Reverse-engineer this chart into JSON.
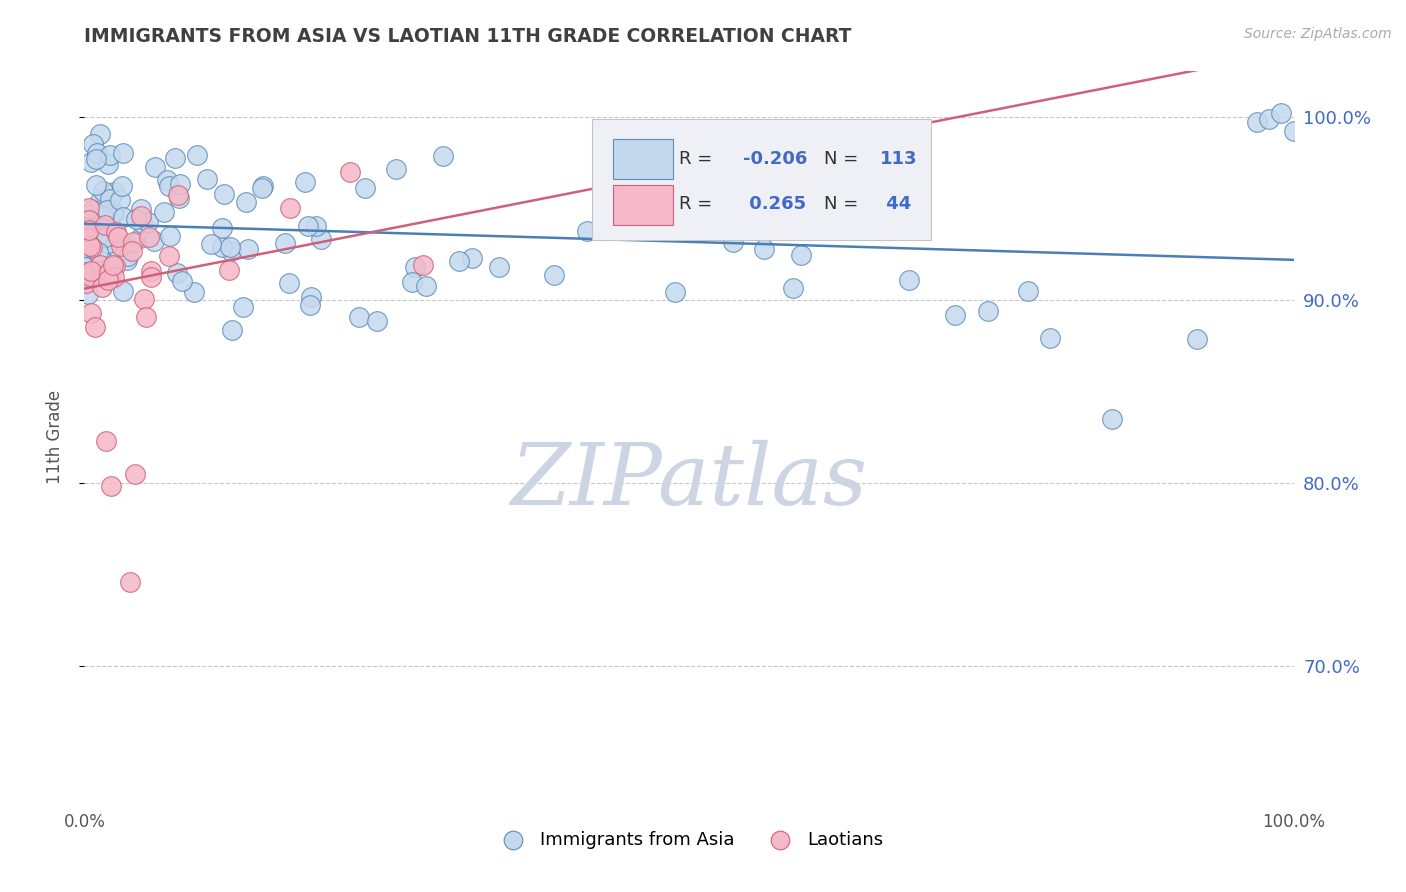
{
  "title": "IMMIGRANTS FROM ASIA VS LAOTIAN 11TH GRADE CORRELATION CHART",
  "source_text": "Source: ZipAtlas.com",
  "ylabel": "11th Grade",
  "x_min": 0.0,
  "x_max": 1.0,
  "y_min": 0.625,
  "y_max": 1.025,
  "y_ticks": [
    0.7,
    0.8,
    0.9,
    1.0
  ],
  "y_tick_labels": [
    "70.0%",
    "80.0%",
    "90.0%",
    "100.0%"
  ],
  "color_blue": "#c5d9ee",
  "color_blue_edge": "#5b8db8",
  "color_blue_line": "#4a7fb5",
  "color_pink": "#f5b8c8",
  "color_pink_edge": "#d0607a",
  "color_pink_line": "#d0607a",
  "color_r_value": "#4169c8",
  "title_color": "#404040",
  "grid_color": "#c8c8c8",
  "background_color": "#ffffff",
  "legend_box_color": "#eef0f5",
  "legend_box_edge": "#c0c4cc",
  "watermark_color": "#cdd5e5",
  "source_color": "#aaaaaa"
}
